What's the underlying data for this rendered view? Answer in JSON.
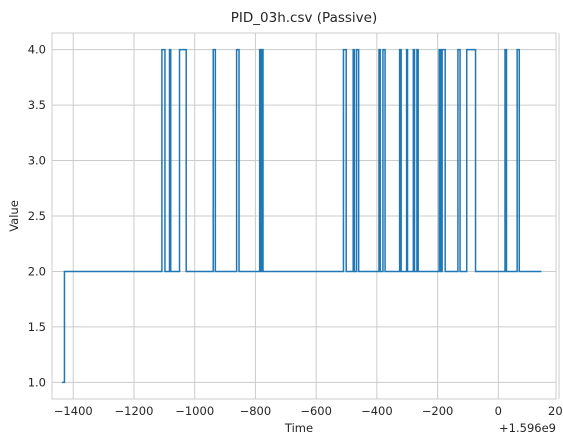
{
  "chart_data": {
    "type": "line",
    "title": "PID_03h.csv (Passive)",
    "xlabel": "Time",
    "ylabel": "Value",
    "offset_text": "+1.596e9",
    "xlim": [
      -1470,
      190
    ],
    "ylim": [
      0.85,
      4.15
    ],
    "xticks": [
      -1400,
      -1200,
      -1000,
      -800,
      -600,
      -400,
      -200,
      0,
      200
    ],
    "xtick_labels": [
      "−1400",
      "−1200",
      "−1000",
      "−800",
      "−600",
      "−400",
      "−200",
      "0",
      "200"
    ],
    "yticks": [
      1.0,
      1.5,
      2.0,
      2.5,
      3.0,
      3.5,
      4.0
    ],
    "ytick_labels": [
      "1.0",
      "1.5",
      "2.0",
      "2.5",
      "3.0",
      "3.5",
      "4.0"
    ],
    "grid": true,
    "line_color": "#1f77b4",
    "series": [
      {
        "step": "post",
        "x": [
          -1437,
          -1429,
          -1108,
          -1098,
          -1083,
          -1079,
          -1067,
          -1050,
          -1028,
          -939,
          -932,
          -862,
          -854,
          -786,
          -782,
          -778,
          -775,
          -510,
          -501,
          -478,
          -474,
          -467,
          -460,
          -393,
          -389,
          -380,
          -373,
          -325,
          -320,
          -302,
          -299,
          -280,
          -276,
          -268,
          -264,
          -195,
          -190,
          -185,
          -175,
          -133,
          -126,
          -113,
          -104,
          -75,
          -70,
          -21,
          -16,
          5,
          12,
          22,
          27,
          62,
          69,
          142
        ],
        "y": [
          1.0,
          2.0,
          4.0,
          2.0,
          4.0,
          2.0,
          2.0,
          4.0,
          2.0,
          4.0,
          2.0,
          4.0,
          2.0,
          4.0,
          2.0,
          4.0,
          2.0,
          4.0,
          2.0,
          4.0,
          2.0,
          4.0,
          2.0,
          4.0,
          2.0,
          4.0,
          2.0,
          4.0,
          2.0,
          4.0,
          2.0,
          4.0,
          2.0,
          4.0,
          2.0,
          4.0,
          2.0,
          4.0,
          2.0,
          4.0,
          2.0,
          2.0,
          4.0,
          2.0,
          2.0,
          2.0,
          2.0,
          2.0,
          2.0,
          4.0,
          2.0,
          4.0,
          2.0,
          2.0
        ]
      }
    ]
  }
}
